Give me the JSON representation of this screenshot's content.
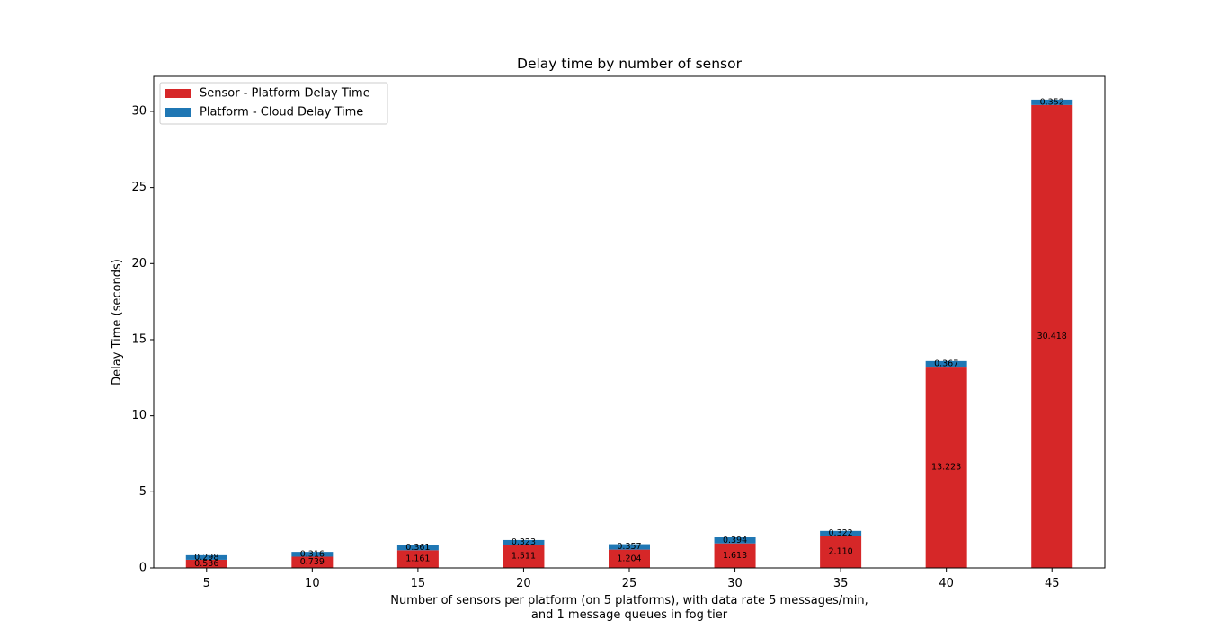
{
  "chart_data": {
    "type": "bar",
    "stacked": true,
    "title": "Delay time by number of sensor",
    "xlabel_lines": [
      "Number of sensors per platform (on 5 platforms), with data rate 5 messages/min,",
      "and 1 message queues in fog tier"
    ],
    "ylabel": "Delay Time (seconds)",
    "categories": [
      "5",
      "10",
      "15",
      "20",
      "25",
      "30",
      "35",
      "40",
      "45"
    ],
    "ylim": [
      0,
      32.3
    ],
    "yticks": [
      0,
      5,
      10,
      15,
      20,
      25,
      30
    ],
    "grid": false,
    "legend_position": "upper-left",
    "series": [
      {
        "name": "Sensor - Platform Delay Time",
        "color": "#d62728",
        "values": [
          0.536,
          0.739,
          1.161,
          1.511,
          1.204,
          1.613,
          2.11,
          13.223,
          30.418
        ],
        "labels": [
          "0.536",
          "0.739",
          "1.161",
          "1.511",
          "1.204",
          "1.613",
          "2.110",
          "13.223",
          "30.418"
        ]
      },
      {
        "name": "Platform - Cloud Delay Time",
        "color": "#1f77b4",
        "values": [
          0.298,
          0.316,
          0.361,
          0.323,
          0.357,
          0.394,
          0.322,
          0.367,
          0.352
        ],
        "labels": [
          "0.298",
          "0.316",
          "0.361",
          "0.323",
          "0.357",
          "0.394",
          "0.322",
          "0.367",
          "0.352"
        ]
      }
    ]
  }
}
